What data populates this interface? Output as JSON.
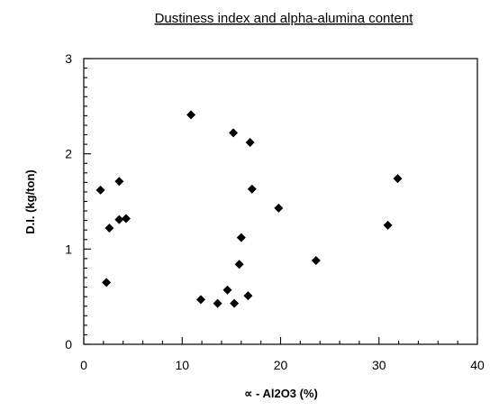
{
  "chart_data": {
    "type": "scatter",
    "title": "Dustiness index and alpha-alumina content",
    "xlabel": "∝ - Al2O3 (%)",
    "ylabel": "D.I. (kg/ton)",
    "xlim": [
      0,
      40
    ],
    "ylim": [
      0,
      3
    ],
    "xticks": [
      0,
      10,
      20,
      30,
      40
    ],
    "yticks": [
      0,
      1,
      2,
      3
    ],
    "grid": false,
    "legend": "none",
    "marker": "diamond",
    "marker_color": "#000000",
    "points": [
      {
        "x": 1.7,
        "y": 1.62
      },
      {
        "x": 2.3,
        "y": 0.65
      },
      {
        "x": 2.6,
        "y": 1.22
      },
      {
        "x": 3.6,
        "y": 1.71
      },
      {
        "x": 3.6,
        "y": 1.31
      },
      {
        "x": 4.3,
        "y": 1.32
      },
      {
        "x": 10.9,
        "y": 2.41
      },
      {
        "x": 11.9,
        "y": 0.47
      },
      {
        "x": 13.6,
        "y": 0.43
      },
      {
        "x": 14.6,
        "y": 0.57
      },
      {
        "x": 15.3,
        "y": 0.43
      },
      {
        "x": 15.2,
        "y": 2.22
      },
      {
        "x": 15.8,
        "y": 0.84
      },
      {
        "x": 16.0,
        "y": 1.12
      },
      {
        "x": 16.7,
        "y": 0.51
      },
      {
        "x": 16.9,
        "y": 2.12
      },
      {
        "x": 17.1,
        "y": 1.63
      },
      {
        "x": 19.8,
        "y": 1.43
      },
      {
        "x": 23.6,
        "y": 0.88
      },
      {
        "x": 30.9,
        "y": 1.25
      },
      {
        "x": 31.9,
        "y": 1.74
      }
    ]
  }
}
